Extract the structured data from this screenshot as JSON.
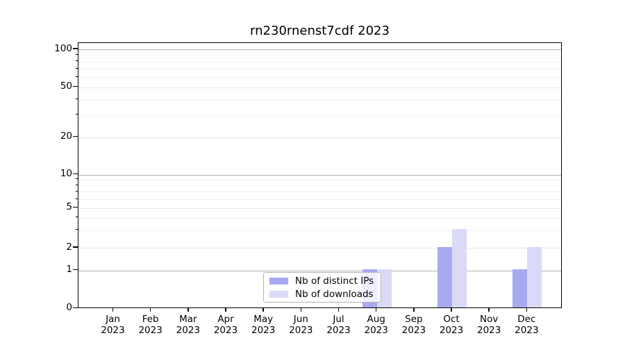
{
  "chart_data": {
    "type": "bar",
    "title": "rn230rnenst7cdf 2023",
    "categories": [
      {
        "month": "Jan",
        "year": "2023"
      },
      {
        "month": "Feb",
        "year": "2023"
      },
      {
        "month": "Mar",
        "year": "2023"
      },
      {
        "month": "Apr",
        "year": "2023"
      },
      {
        "month": "May",
        "year": "2023"
      },
      {
        "month": "Jun",
        "year": "2023"
      },
      {
        "month": "Jul",
        "year": "2023"
      },
      {
        "month": "Aug",
        "year": "2023"
      },
      {
        "month": "Sep",
        "year": "2023"
      },
      {
        "month": "Oct",
        "year": "2023"
      },
      {
        "month": "Nov",
        "year": "2023"
      },
      {
        "month": "Dec",
        "year": "2023"
      }
    ],
    "series": [
      {
        "name": "Nb of distinct IPs",
        "color": "#a9a9f2",
        "values": [
          0,
          0,
          0,
          0,
          0,
          0,
          0,
          1,
          0,
          2,
          0,
          1
        ]
      },
      {
        "name": "Nb of downloads",
        "color": "#dadaf8",
        "values": [
          0,
          0,
          0,
          0,
          0,
          0,
          0,
          1,
          0,
          3,
          0,
          2
        ]
      }
    ],
    "yscale": "symlog",
    "ylim": [
      0,
      112
    ],
    "y_ticks": [
      0,
      1,
      2,
      5,
      10,
      20,
      50,
      100
    ],
    "y_major_grid_values": [
      1,
      10,
      100
    ],
    "y_minor_ticks": [
      3,
      4,
      6,
      7,
      8,
      9,
      30,
      40,
      60,
      70,
      80,
      90
    ],
    "grid": true,
    "legend_position": "lower center"
  }
}
